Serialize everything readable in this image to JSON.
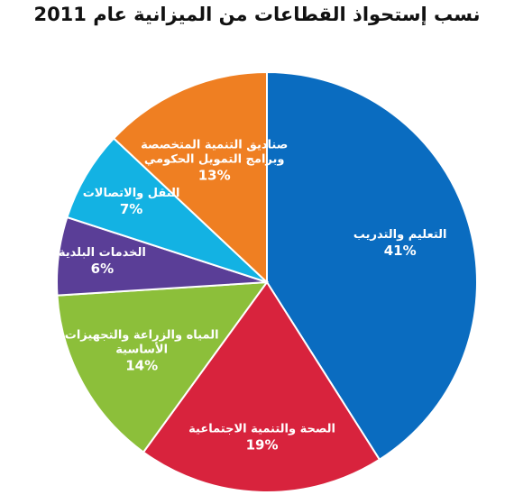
{
  "chart_data": {
    "type": "pie",
    "title": "نسب إستحواذ القطاعات من الميزانية عام 2011",
    "slices": [
      {
        "label_lines": [
          "التعليم والتدريب"
        ],
        "percent_label": "41%",
        "value": 41,
        "color": "#0a6cc0"
      },
      {
        "label_lines": [
          "الصحة والتنمية الاجتماعية"
        ],
        "percent_label": "19%",
        "value": 19,
        "color": "#d8233d"
      },
      {
        "label_lines": [
          "المياه والزراعة والتجهيزات",
          "الأساسية"
        ],
        "percent_label": "14%",
        "value": 14,
        "color": "#8cbf3a"
      },
      {
        "label_lines": [
          "الخدمات البلدية"
        ],
        "percent_label": "6%",
        "value": 6,
        "color": "#5a3e97"
      },
      {
        "label_lines": [
          "النقل والاتصالات"
        ],
        "percent_label": "7%",
        "value": 7,
        "color": "#13b2e3"
      },
      {
        "label_lines": [
          "صناديق التنمية المتخصصة",
          "وبرامج التمويل الحكومي"
        ],
        "percent_label": "13%",
        "value": 13,
        "color": "#ef7f22"
      }
    ]
  }
}
